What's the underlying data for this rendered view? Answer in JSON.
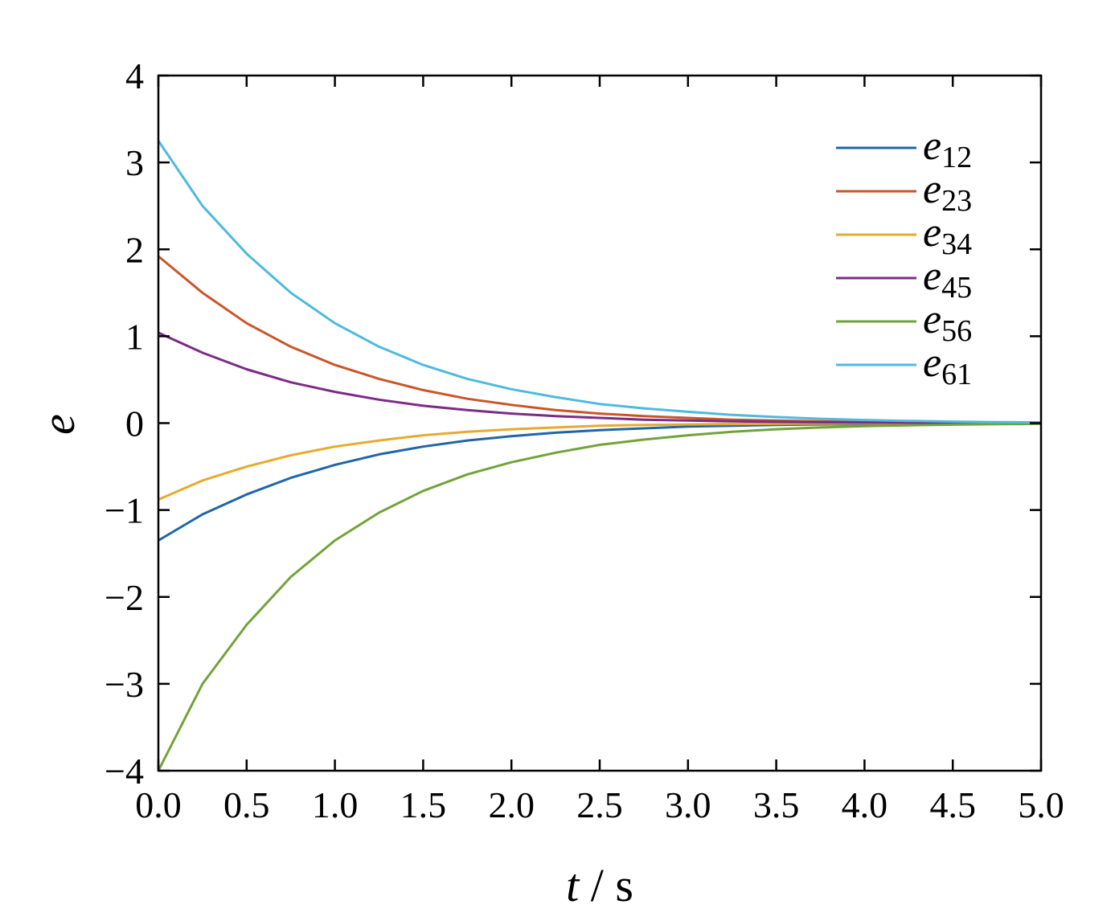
{
  "chart_data": {
    "type": "line",
    "xlabel": {
      "var": "t",
      "unit": "s"
    },
    "ylabel": "e",
    "xlim": [
      0,
      5
    ],
    "ylim": [
      -4,
      4
    ],
    "xticks": [
      "0.0",
      "0.5",
      "1.0",
      "1.5",
      "2.0",
      "2.5",
      "3.0",
      "3.5",
      "4.0",
      "4.5",
      "5.0"
    ],
    "yticks": [
      "4",
      "3",
      "2",
      "1",
      "0",
      "−1",
      "−2",
      "−3",
      "−4"
    ],
    "grid": false,
    "legend_position": "top-right",
    "x": [
      0,
      0.25,
      0.5,
      0.75,
      1.0,
      1.25,
      1.5,
      1.75,
      2.0,
      2.25,
      2.5,
      2.75,
      3.0,
      3.25,
      3.5,
      3.75,
      4.0,
      4.25,
      4.5,
      4.75,
      5.0
    ],
    "series": [
      {
        "name": "e",
        "sub": "12",
        "color": "#1f66a8",
        "values": [
          -1.35,
          -1.05,
          -0.82,
          -0.63,
          -0.48,
          -0.36,
          -0.27,
          -0.2,
          -0.15,
          -0.11,
          -0.08,
          -0.06,
          -0.04,
          -0.03,
          -0.02,
          -0.015,
          -0.01,
          -0.008,
          -0.005,
          -0.003,
          -0.002
        ]
      },
      {
        "name": "e",
        "sub": "23",
        "color": "#c9562a",
        "values": [
          1.92,
          1.5,
          1.15,
          0.88,
          0.67,
          0.51,
          0.38,
          0.28,
          0.21,
          0.15,
          0.11,
          0.08,
          0.06,
          0.04,
          0.03,
          0.02,
          0.015,
          0.01,
          0.007,
          0.005,
          0.003
        ]
      },
      {
        "name": "e",
        "sub": "34",
        "color": "#e6ab2e",
        "values": [
          -0.88,
          -0.66,
          -0.5,
          -0.37,
          -0.27,
          -0.2,
          -0.14,
          -0.1,
          -0.07,
          -0.05,
          -0.03,
          -0.02,
          -0.015,
          -0.01,
          -0.007,
          -0.005,
          -0.003,
          -0.002,
          -0.001,
          -0.001,
          0
        ]
      },
      {
        "name": "e",
        "sub": "45",
        "color": "#7b2c86",
        "values": [
          1.04,
          0.81,
          0.62,
          0.47,
          0.36,
          0.27,
          0.2,
          0.15,
          0.11,
          0.08,
          0.06,
          0.04,
          0.03,
          0.02,
          0.015,
          0.01,
          0.007,
          0.005,
          0.003,
          0.002,
          0.001
        ]
      },
      {
        "name": "e",
        "sub": "56",
        "color": "#72a33a",
        "values": [
          -4.0,
          -3.0,
          -2.32,
          -1.77,
          -1.35,
          -1.03,
          -0.78,
          -0.59,
          -0.45,
          -0.34,
          -0.25,
          -0.19,
          -0.14,
          -0.1,
          -0.07,
          -0.05,
          -0.035,
          -0.025,
          -0.018,
          -0.012,
          -0.008
        ]
      },
      {
        "name": "e",
        "sub": "61",
        "color": "#4fb9e0",
        "values": [
          3.25,
          2.5,
          1.95,
          1.5,
          1.15,
          0.88,
          0.67,
          0.51,
          0.39,
          0.3,
          0.22,
          0.17,
          0.13,
          0.095,
          0.07,
          0.05,
          0.036,
          0.026,
          0.018,
          0.012,
          0.008
        ]
      }
    ]
  }
}
